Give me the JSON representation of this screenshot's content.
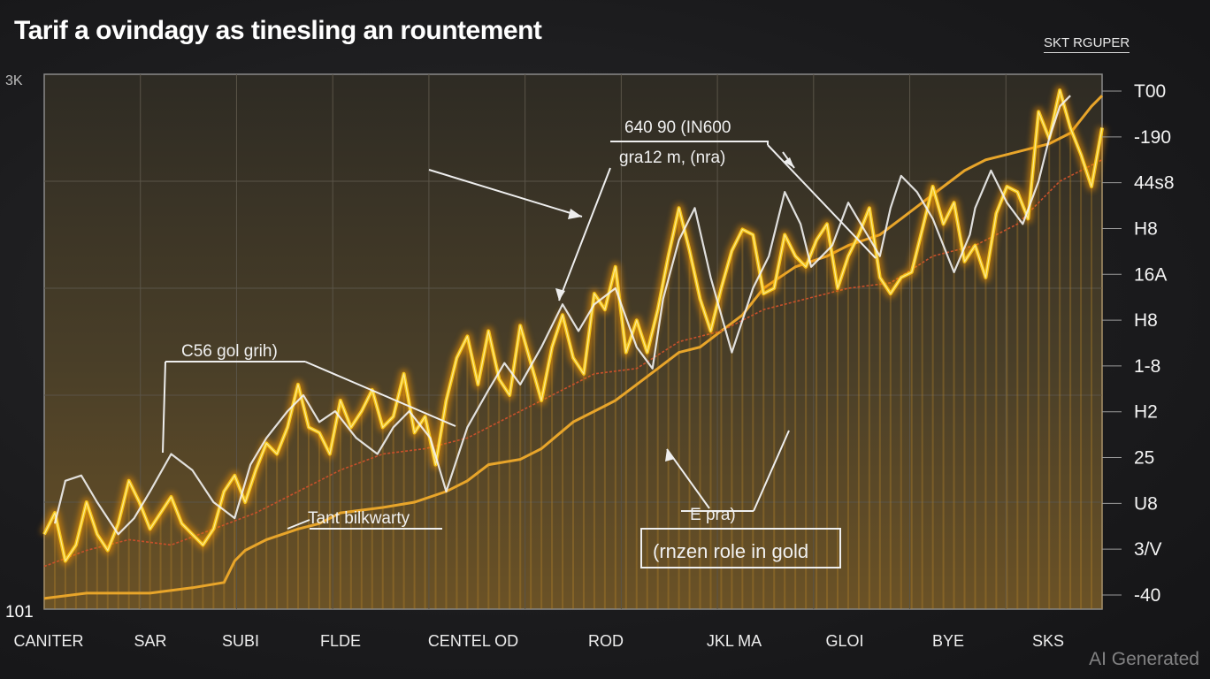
{
  "chart_data": {
    "type": "line",
    "title": "Tarif a ovindagy as tinesling an rountement",
    "legend": "SKT RGUPER",
    "legend_position": "top-right",
    "grid": true,
    "watermark": "AI Generated",
    "corner_labels": {
      "top_left": "3K",
      "bottom_left": "101"
    },
    "x_ticks": [
      "CANITER",
      "SAR",
      "SUBI",
      "FLDE",
      "CENTEL OD",
      "ROD",
      "JKL MA",
      "GLOI",
      "BYE",
      "SKS"
    ],
    "y_ticks": [
      "T00",
      "-190",
      "44s8",
      "H8",
      "16A",
      "H8",
      "1-8",
      "H2",
      "25",
      "U8",
      "3/V",
      "-40"
    ],
    "x_range": [
      0,
      100
    ],
    "y_range": [
      0,
      100
    ],
    "colors": {
      "gold_main": "#f5c518",
      "gold_glow": "#ff9a00",
      "trend": "#e8a52a",
      "ma": "#c8502a",
      "annotation": "#f2f2f2",
      "plot_bg": "#3b3426"
    },
    "series": [
      {
        "x": [
          0,
          1,
          2,
          3,
          4,
          5,
          6,
          7,
          8,
          9,
          10,
          11,
          12,
          13,
          14,
          15,
          16,
          17,
          18,
          19,
          20,
          21,
          22,
          23,
          24,
          25,
          26,
          27,
          28,
          29,
          30,
          31,
          32,
          33,
          34,
          35,
          36,
          37,
          38,
          39,
          40,
          41,
          42,
          43,
          44,
          45,
          46,
          47,
          48,
          49,
          50,
          51,
          52,
          53,
          54,
          55,
          56,
          57,
          58,
          59,
          60,
          61,
          62,
          63,
          64,
          65,
          66,
          67,
          68,
          69,
          70,
          71,
          72,
          73,
          74,
          75,
          76,
          77,
          78,
          79,
          80,
          81,
          82,
          83,
          84,
          85,
          86,
          87,
          88,
          89,
          90,
          91,
          92,
          93,
          94,
          95,
          96,
          97,
          98,
          99,
          100
        ],
        "values": [
          14,
          18,
          9,
          12,
          20,
          14,
          11,
          16,
          24,
          20,
          15,
          18,
          21,
          16,
          14,
          12,
          15,
          22,
          25,
          20,
          26,
          31,
          29,
          34,
          42,
          34,
          33,
          29,
          39,
          34,
          37,
          41,
          34,
          36,
          44,
          33,
          36,
          27,
          39,
          47,
          51,
          42,
          52,
          43,
          40,
          53,
          46,
          39,
          49,
          55,
          47,
          44,
          59,
          56,
          64,
          48,
          54,
          48,
          56,
          66,
          75,
          67,
          58,
          52,
          60,
          67,
          71,
          70,
          59,
          60,
          70,
          66,
          64,
          69,
          72,
          60,
          66,
          70,
          75,
          62,
          59,
          62,
          63,
          71,
          79,
          72,
          76,
          65,
          68,
          62,
          74,
          79,
          78,
          73,
          93,
          88,
          97,
          90,
          85,
          79,
          90
        ]
      },
      {
        "x": [
          0,
          4,
          8,
          10,
          14,
          17,
          18,
          19,
          21,
          24,
          26,
          28,
          32,
          35,
          38,
          40,
          42,
          45,
          47,
          50,
          53,
          54,
          56,
          58,
          60,
          62,
          64,
          66,
          68,
          71,
          74,
          76,
          79,
          81,
          83,
          85,
          87,
          89,
          91,
          93,
          95,
          97,
          99,
          100
        ],
        "values": [
          2,
          3,
          3,
          3,
          4,
          5,
          9,
          11,
          13,
          15,
          16,
          18,
          19,
          20,
          22,
          24,
          27,
          28,
          30,
          35,
          38,
          39,
          42,
          45,
          48,
          49,
          52,
          55,
          60,
          64,
          66,
          68,
          70,
          73,
          76,
          79,
          82,
          84,
          85,
          86,
          87,
          89,
          94,
          96
        ]
      },
      {
        "x": [
          0,
          4,
          8,
          12,
          16,
          20,
          24,
          28,
          32,
          36,
          40,
          44,
          48,
          52,
          56,
          60,
          64,
          68,
          72,
          76,
          80,
          84,
          88,
          92,
          96,
          100
        ],
        "values": [
          8,
          11,
          13,
          12,
          15,
          18,
          22,
          26,
          29,
          30,
          32,
          36,
          40,
          44,
          45,
          50,
          52,
          56,
          58,
          60,
          61,
          66,
          68,
          72,
          80,
          84
        ]
      },
      {
        "x": [
          1,
          2,
          3.5,
          5,
          7,
          8.5,
          10,
          12,
          14,
          16,
          18,
          19.5,
          21,
          23,
          24.5,
          26,
          27.5,
          29.5,
          31.5,
          33,
          34.5,
          36.5,
          38,
          40,
          42,
          43.5,
          45,
          47,
          49,
          50.5,
          52,
          54,
          56,
          57.5,
          58.5,
          60,
          61.5,
          63,
          65,
          66,
          67,
          68.5,
          70,
          71.5,
          72.5,
          74.5,
          76,
          77.5,
          79,
          80,
          81,
          82.5,
          84,
          86,
          87.5,
          88,
          89.5,
          91,
          92.5,
          94,
          95,
          96,
          97
        ],
        "values": [
          16,
          24,
          25,
          20,
          14,
          17,
          22,
          29,
          26,
          20,
          17,
          27,
          32,
          37,
          40,
          35,
          37,
          32,
          29,
          34,
          37,
          32,
          22,
          34,
          41,
          46,
          42,
          49,
          57,
          52,
          57,
          60,
          49,
          45,
          58,
          69,
          75,
          62,
          48,
          54,
          60,
          66,
          78,
          72,
          64,
          68,
          76,
          71,
          66,
          75,
          81,
          78,
          73,
          63,
          70,
          75,
          82,
          76,
          72,
          80,
          88,
          94,
          96
        ]
      }
    ],
    "annotations": [
      {
        "text": "C56 gol grih)",
        "x": 13,
        "y": 50,
        "target_x": 11,
        "target_y": 28
      },
      {
        "text": "640 90 (IN600",
        "x": 55,
        "y": 95,
        "target_x": 48,
        "target_y": 56
      },
      {
        "text": "gra12 m, (nra)",
        "x": 55,
        "y": 92,
        "target_x": 48,
        "target_y": 56
      },
      {
        "text": "Tant bilkwarty",
        "x": 28,
        "y": 17,
        "target_x": 0,
        "target_y": 0
      },
      {
        "text": "E pra)",
        "x": 59,
        "y": 18,
        "target_x": 59,
        "target_y": 32
      },
      {
        "text": "(rnzen role in gold",
        "x": 59,
        "y": 10,
        "target_x": 59,
        "target_y": 10
      }
    ]
  }
}
